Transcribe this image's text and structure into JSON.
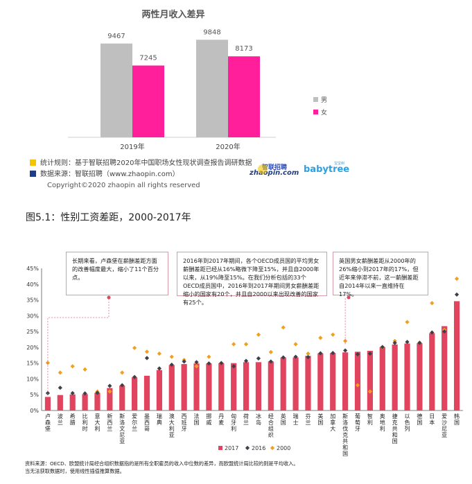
{
  "top_chart": {
    "title": "两性月收入差异",
    "note_rule": "统计规则：基于智联招聘2020年中国职场女性现状调查报告调研数据",
    "note_source": "数据来源：智联招聘（www.zhaopin.com）",
    "copyright": "Copyright©2020 zhaopin all rights reserved",
    "logo_zhaopin": "智联招聘",
    "logo_zhaopin_sub": "zhaopin.com",
    "logo_babytree": "babytree",
    "logo_babytree_small": "宝宝树",
    "colors": {
      "male": "#bfbfbf",
      "female": "#ff1f9a",
      "rule_square": "#f5c400",
      "source_square": "#1f3c88"
    }
  },
  "figure_caption": "图5.1：性别工资差距，2000-2017年",
  "annotations": [
    "长期来看，卢森堡在薪酬差距方面的改善幅度最大，缩小了11个百分点。",
    "2016年到2017年期间，各个OECD成员国的平均男女薪酬差距已经从16%略微下降至15%，并且自2000年以来，从19%降至15%。在我们分析包括的33个OECD成员国中，2016年到2017年期间男女薪酬差距缩小的国家有20个，并且自2000以来出现改善的国家有25个。",
    "英国男女薪酬差距从2000年的26%缩小到2017年的17%，但近年来停滞不前，这一薪酬差距自2014年以来一直维持在17%。"
  ],
  "source_note": {
    "line1": "资料来源：OECD、欧盟统计局经合组织数据指的是所有全职雇员的收入中位数的差异，而欧盟统计局比较的则是平均收入。",
    "line2": "当无法获取数据时，使用线性插值推算数据。"
  },
  "chart_data": [
    {
      "type": "bar",
      "title": "两性月收入差异",
      "categories": [
        "2019年",
        "2020年"
      ],
      "series": [
        {
          "name": "男",
          "values": [
            9467,
            9848
          ],
          "color": "#bfbfbf"
        },
        {
          "name": "女",
          "values": [
            7245,
            8173
          ],
          "color": "#ff1f9a"
        }
      ],
      "ylim": [
        0,
        10500
      ],
      "legend": "right"
    },
    {
      "type": "bar",
      "categories": [
        "卢森堡",
        "波兰",
        "希腊",
        "比利时",
        "意大利",
        "新西兰",
        "斯洛文尼亚",
        "爱尔兰",
        "墨西哥",
        "瑞典",
        "澳大利亚",
        "西班牙",
        "法国",
        "挪威",
        "丹麦",
        "匈牙利",
        "荷兰",
        "冰岛",
        "经合组织",
        "英国",
        "瑞士",
        "芬兰",
        "美国",
        "加拿大",
        "斯洛伐克共和国",
        "葡萄牙",
        "智利",
        "奥地利",
        "捷克共和国",
        "以色列",
        "德国",
        "日本",
        "爱沙尼亚",
        "韩国"
      ],
      "series": [
        {
          "name": "2017",
          "values": [
            4.3,
            4.9,
            5.1,
            5.2,
            5.6,
            7.1,
            7.9,
            10.5,
            11.0,
            12.8,
            14.4,
            14.7,
            14.9,
            14.9,
            15.0,
            15.0,
            15.3,
            15.3,
            15.5,
            16.8,
            16.8,
            17.3,
            18.1,
            18.2,
            18.4,
            18.6,
            18.9,
            20.1,
            20.9,
            21.2,
            21.3,
            24.5,
            26.7,
            34.6
          ],
          "color": "#e0445e"
        },
        {
          "name": "2016",
          "values": [
            5.5,
            7.2,
            5.5,
            5.4,
            5.6,
            7.8,
            8.0,
            10.6,
            16.6,
            13.3,
            14.5,
            15.5,
            15.3,
            14.9,
            15.0,
            14.0,
            15.7,
            16.5,
            15.5,
            16.8,
            17.0,
            16.9,
            18.1,
            18.2,
            19.0,
            17.8,
            18.0,
            20.1,
            21.4,
            21.7,
            21.4,
            24.7,
            25.0,
            36.7
          ],
          "color": "#3f3f4a"
        },
        {
          "name": "2000",
          "values": [
            15.1,
            12.0,
            14.0,
            13.0,
            6.0,
            6.0,
            12.0,
            19.8,
            18.6,
            18.0,
            17.0,
            16.0,
            14.0,
            17.0,
            15.0,
            21.0,
            21.0,
            24.0,
            18.5,
            26.3,
            21.0,
            18.0,
            23.0,
            24.0,
            22.0,
            8.0,
            6.0,
            20.0,
            22.0,
            28.0,
            21.5,
            34.0,
            25.5,
            41.7
          ],
          "color": "#f0a020"
        }
      ],
      "yticks": [
        "0%",
        "5%",
        "10%",
        "15%",
        "20%",
        "25%",
        "30%",
        "35%",
        "40%",
        "45%"
      ],
      "ylim": [
        0,
        45
      ],
      "legend": "bottom"
    }
  ]
}
